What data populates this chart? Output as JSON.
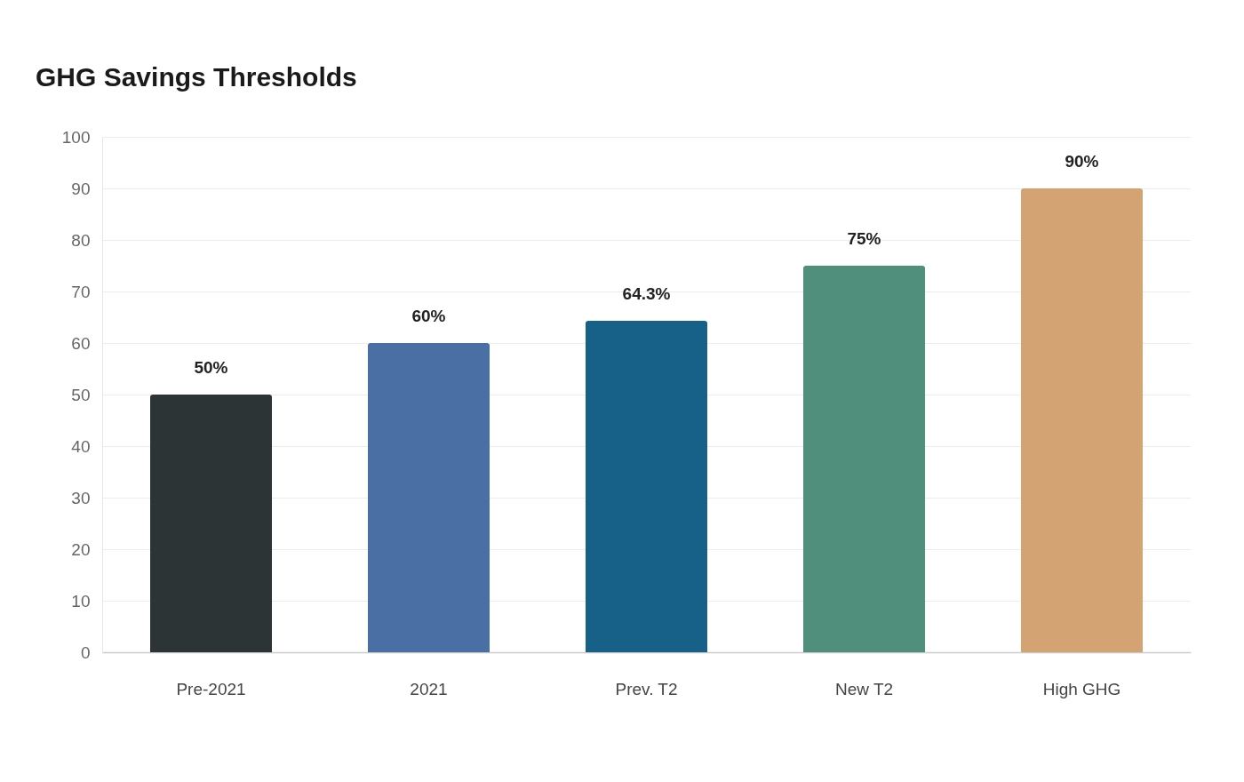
{
  "chart_data": {
    "type": "bar",
    "title": "GHG Savings Thresholds",
    "categories": [
      "Pre-2021",
      "2021",
      "Prev. T2",
      "New T2",
      "High GHG"
    ],
    "values": [
      50,
      60,
      64.3,
      75,
      90
    ],
    "colors": [
      "#2d3436",
      "#4a6fa5",
      "#176087",
      "#4f8f7b",
      "#d4a373"
    ],
    "value_labels": [
      "50%",
      "60%",
      "64.3%",
      "75%",
      "90%"
    ],
    "ylim": [
      0,
      100
    ],
    "yticks": [
      0,
      10,
      20,
      30,
      40,
      50,
      60,
      70,
      80,
      90,
      100
    ],
    "grid": true
  }
}
